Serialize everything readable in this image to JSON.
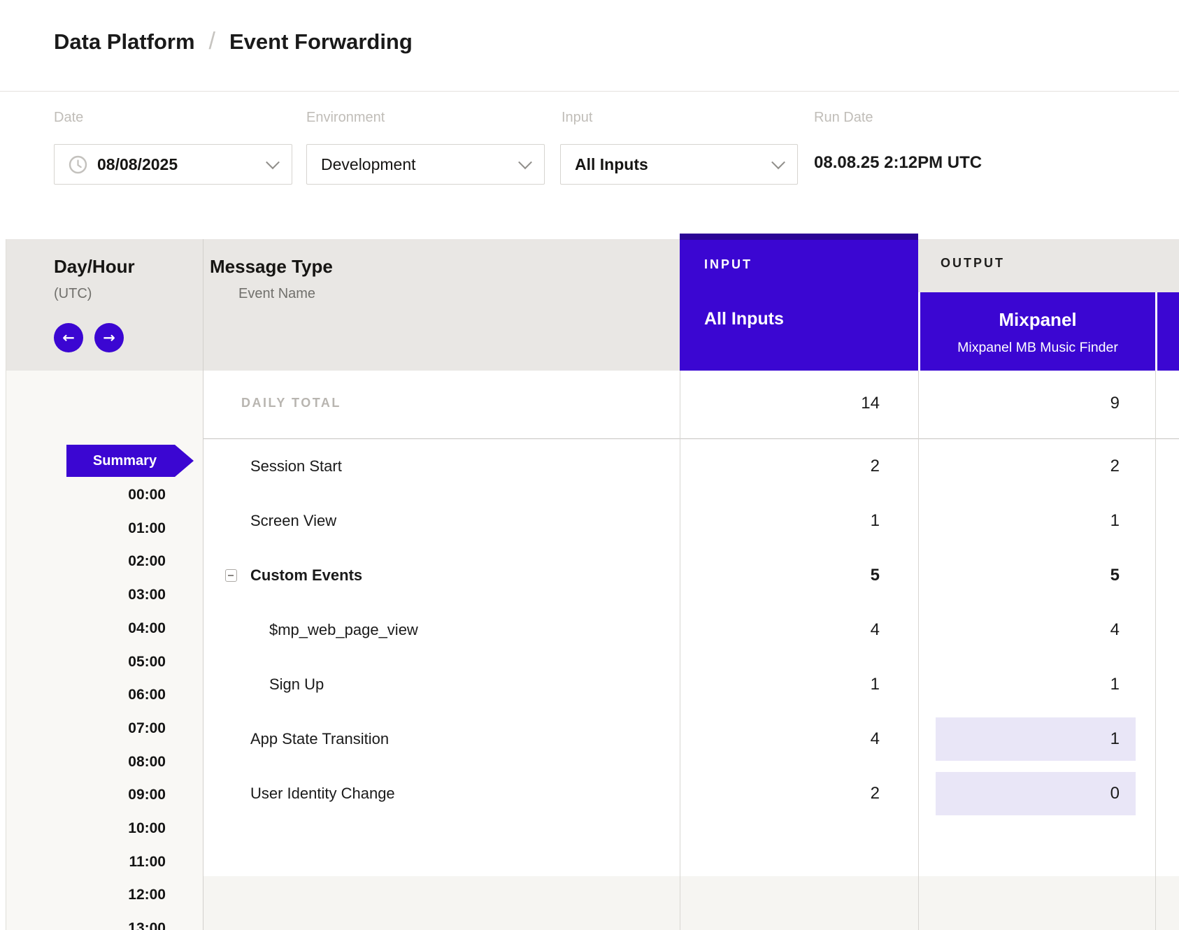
{
  "breadcrumb": {
    "section": "Data Platform",
    "separator": "/",
    "page": "Event Forwarding"
  },
  "filters": {
    "date": {
      "label": "Date",
      "value": "08/08/2025"
    },
    "environment": {
      "label": "Environment",
      "value": "Development"
    },
    "input": {
      "label": "Input",
      "value": "All Inputs"
    },
    "run_date": {
      "label": "Run Date",
      "value": "08.08.25 2:12PM UTC"
    }
  },
  "table": {
    "day_hour": {
      "title": "Day/Hour",
      "subtitle": "(UTC)",
      "prev_icon": "←",
      "next_icon": "→"
    },
    "message_type": {
      "title": "Message Type",
      "subtitle": "Event Name"
    },
    "input_header": {
      "label": "INPUT",
      "value": "All Inputs"
    },
    "output_header": {
      "label": "OUTPUT",
      "name": "Mixpanel",
      "subtitle": "Mixpanel MB Music Finder"
    },
    "daily_total": {
      "label": "DAILY TOTAL",
      "input": "14",
      "output": "9"
    },
    "rows": [
      {
        "name": "Session Start",
        "input": "2",
        "output": "2"
      },
      {
        "name": "Screen View",
        "input": "1",
        "output": "1"
      },
      {
        "name": "Custom Events",
        "input": "5",
        "output": "5",
        "bold": true,
        "collapsible": true
      },
      {
        "name": "$mp_web_page_view",
        "input": "4",
        "output": "4",
        "indent": 1
      },
      {
        "name": "Sign Up",
        "input": "1",
        "output": "1",
        "indent": 1
      },
      {
        "name": "App State Transition",
        "input": "4",
        "output": "1",
        "highlight_output": true
      },
      {
        "name": "User Identity Change",
        "input": "2",
        "output": "0",
        "highlight_output": true
      }
    ],
    "summary_label": "Summary",
    "hours": [
      "00:00",
      "01:00",
      "02:00",
      "03:00",
      "04:00",
      "05:00",
      "06:00",
      "07:00",
      "08:00",
      "09:00",
      "10:00",
      "11:00",
      "12:00",
      "13:00"
    ]
  },
  "colors": {
    "accent": "#3B06D2",
    "accent_dark": "#2B0595",
    "highlight": "#E9E6F7",
    "header_gray": "#E9E7E4"
  }
}
